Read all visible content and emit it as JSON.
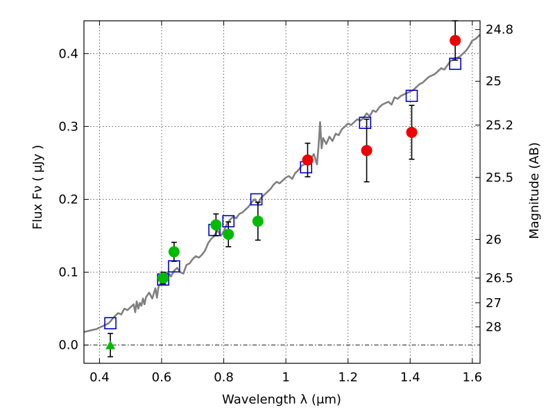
{
  "chart_data": {
    "type": "scatter",
    "xlabel": "Wavelength  λ (μm)",
    "ylabel": "Flux  Fν  ( μJy )",
    "y2label": "Magnitude (AB)",
    "xlim": [
      0.35,
      1.625
    ],
    "ylim": [
      -0.025,
      0.445
    ],
    "grid": true,
    "x_ticks": [
      0.4,
      0.6,
      0.8,
      1.0,
      1.2,
      1.4,
      1.6
    ],
    "x_tick_labels": [
      "0.4",
      "0.6",
      "0.8",
      "1",
      "1.2",
      "1.4",
      "1.6"
    ],
    "y_ticks": [
      0.0,
      0.1,
      0.2,
      0.3,
      0.4
    ],
    "y_tick_labels": [
      "0.0",
      "0.1",
      "0.2",
      "0.3",
      "0.4"
    ],
    "mag_ticks": [
      {
        "value": 0.433,
        "label": "24.8"
      },
      {
        "value": 0.362,
        "label": "25"
      },
      {
        "value": 0.302,
        "label": "25.2"
      },
      {
        "value": 0.23,
        "label": "25.5"
      },
      {
        "value": 0.145,
        "label": "26"
      },
      {
        "value": 0.092,
        "label": "26.5"
      },
      {
        "value": 0.058,
        "label": "27"
      },
      {
        "value": 0.025,
        "label": "28"
      }
    ],
    "zero_line": 0.0,
    "series": [
      {
        "kind": "model_sed",
        "color": "#808080",
        "x": [
          0.35,
          0.37,
          0.39,
          0.41,
          0.42,
          0.43,
          0.44,
          0.45,
          0.46,
          0.47,
          0.48,
          0.49,
          0.5,
          0.51,
          0.515,
          0.52,
          0.525,
          0.53,
          0.535,
          0.54,
          0.545,
          0.55,
          0.56,
          0.57,
          0.58,
          0.585,
          0.59,
          0.6,
          0.61,
          0.62,
          0.63,
          0.64,
          0.65,
          0.66,
          0.67,
          0.68,
          0.69,
          0.7,
          0.71,
          0.72,
          0.73,
          0.74,
          0.75,
          0.76,
          0.77,
          0.78,
          0.79,
          0.8,
          0.81,
          0.82,
          0.83,
          0.84,
          0.85,
          0.86,
          0.87,
          0.88,
          0.89,
          0.9,
          0.91,
          0.92,
          0.93,
          0.94,
          0.95,
          0.96,
          0.97,
          0.98,
          0.99,
          1.0,
          1.01,
          1.02,
          1.03,
          1.04,
          1.05,
          1.06,
          1.07,
          1.08,
          1.09,
          1.1,
          1.105,
          1.11,
          1.115,
          1.12,
          1.13,
          1.14,
          1.15,
          1.16,
          1.17,
          1.18,
          1.19,
          1.2,
          1.21,
          1.22,
          1.23,
          1.24,
          1.25,
          1.26,
          1.27,
          1.28,
          1.29,
          1.3,
          1.31,
          1.32,
          1.33,
          1.34,
          1.35,
          1.36,
          1.37,
          1.38,
          1.39,
          1.4,
          1.41,
          1.42,
          1.43,
          1.44,
          1.45,
          1.46,
          1.47,
          1.48,
          1.49,
          1.5,
          1.51,
          1.52,
          1.53,
          1.54,
          1.55,
          1.56,
          1.57,
          1.58,
          1.59,
          1.6,
          1.61,
          1.625
        ],
        "y": [
          0.018,
          0.02,
          0.022,
          0.026,
          0.028,
          0.03,
          0.035,
          0.04,
          0.044,
          0.042,
          0.05,
          0.048,
          0.052,
          0.056,
          0.045,
          0.06,
          0.05,
          0.058,
          0.054,
          0.064,
          0.056,
          0.066,
          0.072,
          0.064,
          0.078,
          0.065,
          0.08,
          0.088,
          0.098,
          0.1,
          0.094,
          0.102,
          0.106,
          0.1,
          0.098,
          0.11,
          0.112,
          0.118,
          0.122,
          0.12,
          0.124,
          0.13,
          0.14,
          0.146,
          0.15,
          0.158,
          0.15,
          0.156,
          0.166,
          0.172,
          0.176,
          0.174,
          0.18,
          0.182,
          0.186,
          0.19,
          0.196,
          0.2,
          0.194,
          0.202,
          0.206,
          0.21,
          0.214,
          0.22,
          0.224,
          0.222,
          0.226,
          0.23,
          0.232,
          0.228,
          0.236,
          0.24,
          0.246,
          0.248,
          0.252,
          0.256,
          0.262,
          0.248,
          0.272,
          0.306,
          0.27,
          0.284,
          0.276,
          0.286,
          0.28,
          0.29,
          0.288,
          0.296,
          0.3,
          0.304,
          0.302,
          0.306,
          0.31,
          0.308,
          0.312,
          0.318,
          0.314,
          0.322,
          0.32,
          0.326,
          0.33,
          0.332,
          0.334,
          0.33,
          0.34,
          0.338,
          0.342,
          0.344,
          0.346,
          0.348,
          0.35,
          0.354,
          0.358,
          0.36,
          0.364,
          0.368,
          0.37,
          0.372,
          0.376,
          0.38,
          0.378,
          0.384,
          0.39,
          0.392,
          0.394,
          0.396,
          0.4,
          0.404,
          0.41,
          0.418,
          0.42,
          0.426
        ]
      },
      {
        "kind": "model_photometry",
        "marker": "open-square",
        "color": "#0000cc",
        "x": [
          0.435,
          0.605,
          0.64,
          0.77,
          0.815,
          0.905,
          1.065,
          1.255,
          1.405,
          1.545
        ],
        "y": [
          0.03,
          0.09,
          0.108,
          0.158,
          0.17,
          0.2,
          0.244,
          0.305,
          0.342,
          0.386
        ]
      },
      {
        "kind": "observed_optical",
        "marker": "filled-circle",
        "color": "#00bb00",
        "x": [
          0.605,
          0.64,
          0.775,
          0.815,
          0.91
        ],
        "y": [
          0.092,
          0.128,
          0.165,
          0.152,
          0.17
        ],
        "err": [
          0.008,
          0.013,
          0.015,
          0.017,
          0.026
        ]
      },
      {
        "kind": "upper_limit",
        "marker": "filled-triangle",
        "color": "#00bb00",
        "x": [
          0.435
        ],
        "y": [
          0.0
        ],
        "err": [
          0.016
        ]
      },
      {
        "kind": "observed_nir",
        "marker": "filled-circle",
        "color": "#ee0000",
        "x": [
          1.07,
          1.26,
          1.405,
          1.545
        ],
        "y": [
          0.254,
          0.267,
          0.292,
          0.418
        ],
        "err": [
          0.023,
          0.043,
          0.037,
          0.027
        ]
      }
    ]
  }
}
